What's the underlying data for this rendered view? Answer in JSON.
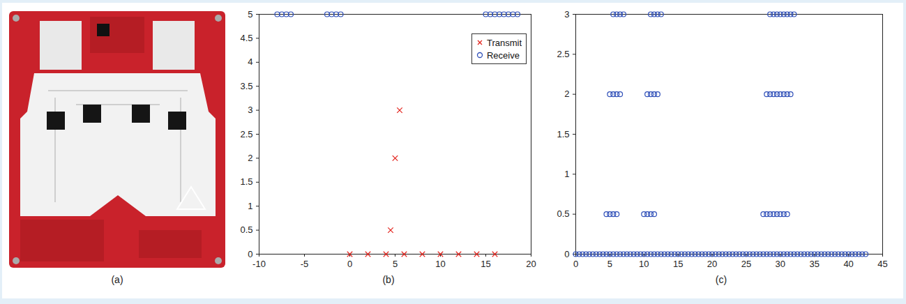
{
  "photo": {
    "caption": "(a)"
  },
  "chart_data": [
    {
      "type": "scatter",
      "caption": "(b)",
      "xlim": [
        -10,
        20
      ],
      "xticks": [
        -10,
        -5,
        0,
        5,
        10,
        15,
        20
      ],
      "ylim": [
        0,
        5
      ],
      "yticks": [
        0,
        0.5,
        1,
        1.5,
        2,
        2.5,
        3,
        3.5,
        4,
        4.5,
        5
      ],
      "legend": "top right",
      "series": [
        {
          "name": "Transmit",
          "color": "#e3231c",
          "marker": "x",
          "x": [
            0,
            2,
            4,
            6,
            8,
            10,
            12,
            14,
            16,
            4.5,
            5,
            5.5
          ],
          "values": [
            0,
            0,
            0,
            0,
            0,
            0,
            0,
            0,
            0,
            0.5,
            2,
            3
          ]
        },
        {
          "name": "Receive",
          "color": "#2f4fb8",
          "marker": "o",
          "x": [
            -8,
            -7.5,
            -7,
            -6.5,
            -2.5,
            -2,
            -1.5,
            -1,
            15,
            15.5,
            16,
            16.5,
            17,
            17.5,
            18,
            18.5
          ],
          "values": [
            5,
            5,
            5,
            5,
            5,
            5,
            5,
            5,
            5,
            5,
            5,
            5,
            5,
            5,
            5,
            5
          ]
        }
      ]
    },
    {
      "type": "scatter",
      "caption": "(c)",
      "xlim": [
        0,
        45
      ],
      "xticks": [
        0,
        5,
        10,
        15,
        20,
        25,
        30,
        35,
        40,
        45
      ],
      "ylim": [
        0,
        3
      ],
      "yticks": [
        0,
        0.5,
        1,
        1.5,
        2,
        2.5,
        3
      ],
      "series": [
        {
          "color": "#2f4fb8",
          "marker": "o",
          "x": [
            0,
            0.5,
            1,
            1.5,
            2,
            2.5,
            3,
            3.5,
            4,
            4.5,
            5,
            5.5,
            6,
            6.5,
            7,
            7.5,
            8,
            8.5,
            9,
            9.5,
            10,
            10.5,
            11,
            11.5,
            12,
            12.5,
            13,
            13.5,
            14,
            14.5,
            15,
            15.5,
            16,
            16.5,
            17,
            17.5,
            18,
            18.5,
            19,
            19.5,
            20,
            20.5,
            21,
            21.5,
            22,
            22.5,
            23,
            23.5,
            24,
            24.5,
            25,
            25.5,
            26,
            26.5,
            27,
            27.5,
            28,
            28.5,
            29,
            29.5,
            30,
            30.5,
            31,
            31.5,
            32,
            32.5,
            33,
            33.5,
            34,
            34.5,
            35,
            35.5,
            36,
            36.5,
            37,
            37.5,
            38,
            38.5,
            39,
            39.5,
            40,
            40.5,
            41,
            41.5,
            42,
            42.5
          ],
          "values": [
            0,
            0,
            0,
            0,
            0,
            0,
            0,
            0,
            0,
            0,
            0,
            0,
            0,
            0,
            0,
            0,
            0,
            0,
            0,
            0,
            0,
            0,
            0,
            0,
            0,
            0,
            0,
            0,
            0,
            0,
            0,
            0,
            0,
            0,
            0,
            0,
            0,
            0,
            0,
            0,
            0,
            0,
            0,
            0,
            0,
            0,
            0,
            0,
            0,
            0,
            0,
            0,
            0,
            0,
            0,
            0,
            0,
            0,
            0,
            0,
            0,
            0,
            0,
            0,
            0,
            0,
            0,
            0,
            0,
            0,
            0,
            0,
            0,
            0,
            0,
            0,
            0,
            0,
            0,
            0,
            0,
            0,
            0,
            0,
            0,
            0
          ]
        },
        {
          "color": "#2f4fb8",
          "marker": "o",
          "x": [
            4.5,
            5,
            5.5,
            6,
            10,
            10.5,
            11,
            11.5,
            27.5,
            28,
            28.5,
            29,
            29.5,
            30,
            30.5,
            31
          ],
          "values": [
            0.5,
            0.5,
            0.5,
            0.5,
            0.5,
            0.5,
            0.5,
            0.5,
            0.5,
            0.5,
            0.5,
            0.5,
            0.5,
            0.5,
            0.5,
            0.5
          ]
        },
        {
          "color": "#2f4fb8",
          "marker": "o",
          "x": [
            5,
            5.5,
            6,
            6.5,
            10.5,
            11,
            11.5,
            12,
            28,
            28.5,
            29,
            29.5,
            30,
            30.5,
            31,
            31.5
          ],
          "values": [
            2,
            2,
            2,
            2,
            2,
            2,
            2,
            2,
            2,
            2,
            2,
            2,
            2,
            2,
            2,
            2
          ]
        },
        {
          "color": "#2f4fb8",
          "marker": "o",
          "x": [
            5.5,
            6,
            6.5,
            7,
            11,
            11.5,
            12,
            12.5,
            28.5,
            29,
            29.5,
            30,
            30.5,
            31,
            31.5,
            32
          ],
          "values": [
            3,
            3,
            3,
            3,
            3,
            3,
            3,
            3,
            3,
            3,
            3,
            3,
            3,
            3,
            3,
            3
          ]
        }
      ]
    }
  ]
}
